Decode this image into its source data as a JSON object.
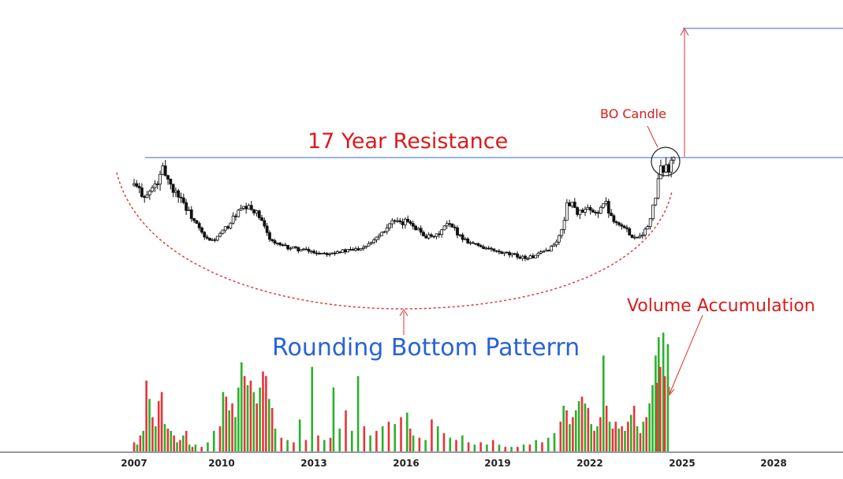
{
  "chart_data": {
    "type": "candlestick",
    "annotations": {
      "resistance": "17 Year Resistance",
      "breakout": "BO Candle",
      "pattern": "Rounding Bottom Patterrn",
      "volume": "Volume Accumulation"
    },
    "x_ticks": [
      "2007",
      "2010",
      "2013",
      "2016",
      "2019",
      "2022",
      "2025",
      "2028"
    ],
    "xlim": [
      2006.6,
      2029.5
    ],
    "price_range_visible": [
      0,
      100
    ],
    "resistance_level": 82,
    "target_level": 163,
    "price_series": [
      [
        2007.0,
        62
      ],
      [
        2007.2,
        58
      ],
      [
        2007.4,
        55
      ],
      [
        2007.6,
        60
      ],
      [
        2007.8,
        64
      ],
      [
        2007.95,
        72
      ],
      [
        2008.1,
        66
      ],
      [
        2008.3,
        58
      ],
      [
        2008.5,
        56
      ],
      [
        2008.7,
        48
      ],
      [
        2008.9,
        42
      ],
      [
        2009.1,
        36
      ],
      [
        2009.3,
        30
      ],
      [
        2009.5,
        28
      ],
      [
        2009.7,
        30
      ],
      [
        2009.9,
        34
      ],
      [
        2010.1,
        38
      ],
      [
        2010.3,
        44
      ],
      [
        2010.5,
        47
      ],
      [
        2010.7,
        48
      ],
      [
        2010.9,
        47
      ],
      [
        2011.1,
        42
      ],
      [
        2011.3,
        34
      ],
      [
        2011.5,
        28
      ],
      [
        2011.8,
        25
      ],
      [
        2012.1,
        24
      ],
      [
        2012.4,
        23
      ],
      [
        2012.7,
        22
      ],
      [
        2013.0,
        21
      ],
      [
        2013.3,
        21
      ],
      [
        2013.6,
        22
      ],
      [
        2013.9,
        22
      ],
      [
        2014.2,
        23
      ],
      [
        2014.5,
        25
      ],
      [
        2014.8,
        29
      ],
      [
        2015.1,
        34
      ],
      [
        2015.4,
        40
      ],
      [
        2015.7,
        38
      ],
      [
        2015.95,
        41
      ],
      [
        2016.2,
        36
      ],
      [
        2016.5,
        31
      ],
      [
        2016.8,
        30
      ],
      [
        2017.0,
        34
      ],
      [
        2017.2,
        38
      ],
      [
        2017.4,
        36
      ],
      [
        2017.7,
        30
      ],
      [
        2018.0,
        27
      ],
      [
        2018.3,
        25
      ],
      [
        2018.6,
        23
      ],
      [
        2018.9,
        21
      ],
      [
        2019.2,
        20
      ],
      [
        2019.5,
        19
      ],
      [
        2019.8,
        18
      ],
      [
        2020.1,
        19
      ],
      [
        2020.3,
        21
      ],
      [
        2020.5,
        23
      ],
      [
        2020.7,
        26
      ],
      [
        2020.9,
        32
      ],
      [
        2021.0,
        40
      ],
      [
        2021.1,
        49
      ],
      [
        2021.25,
        53
      ],
      [
        2021.4,
        46
      ],
      [
        2021.6,
        45
      ],
      [
        2021.8,
        47
      ],
      [
        2022.0,
        44
      ],
      [
        2022.2,
        48
      ],
      [
        2022.35,
        52
      ],
      [
        2022.5,
        45
      ],
      [
        2022.7,
        40
      ],
      [
        2022.9,
        37
      ],
      [
        2023.1,
        34
      ],
      [
        2023.3,
        30
      ],
      [
        2023.5,
        32
      ],
      [
        2023.7,
        35
      ],
      [
        2023.85,
        42
      ],
      [
        2024.0,
        56
      ],
      [
        2024.15,
        70
      ],
      [
        2024.3,
        74
      ],
      [
        2024.45,
        71
      ],
      [
        2024.6,
        80
      ]
    ],
    "volume_series": [
      [
        2007.0,
        8,
        "red"
      ],
      [
        2007.1,
        6,
        "green"
      ],
      [
        2007.2,
        14,
        "red"
      ],
      [
        2007.3,
        18,
        "green"
      ],
      [
        2007.4,
        62,
        "red"
      ],
      [
        2007.5,
        46,
        "green"
      ],
      [
        2007.6,
        30,
        "red"
      ],
      [
        2007.7,
        22,
        "green"
      ],
      [
        2007.8,
        44,
        "red"
      ],
      [
        2007.9,
        52,
        "red"
      ],
      [
        2008.0,
        24,
        "green"
      ],
      [
        2008.1,
        20,
        "red"
      ],
      [
        2008.2,
        18,
        "green"
      ],
      [
        2008.3,
        14,
        "red"
      ],
      [
        2008.4,
        8,
        "green"
      ],
      [
        2008.5,
        10,
        "red"
      ],
      [
        2008.6,
        14,
        "green"
      ],
      [
        2008.7,
        18,
        "red"
      ],
      [
        2008.8,
        6,
        "green"
      ],
      [
        2008.9,
        4,
        "red"
      ],
      [
        2009.0,
        6,
        "green"
      ],
      [
        2009.2,
        4,
        "red"
      ],
      [
        2009.4,
        8,
        "green"
      ],
      [
        2009.6,
        18,
        "green"
      ],
      [
        2009.8,
        22,
        "red"
      ],
      [
        2009.9,
        52,
        "green"
      ],
      [
        2010.0,
        48,
        "red"
      ],
      [
        2010.1,
        36,
        "green"
      ],
      [
        2010.2,
        42,
        "red"
      ],
      [
        2010.3,
        30,
        "green"
      ],
      [
        2010.4,
        56,
        "green"
      ],
      [
        2010.5,
        78,
        "green"
      ],
      [
        2010.6,
        66,
        "red"
      ],
      [
        2010.7,
        58,
        "green"
      ],
      [
        2010.8,
        62,
        "red"
      ],
      [
        2010.9,
        52,
        "green"
      ],
      [
        2011.0,
        42,
        "red"
      ],
      [
        2011.1,
        56,
        "green"
      ],
      [
        2011.2,
        70,
        "red"
      ],
      [
        2011.3,
        66,
        "red"
      ],
      [
        2011.4,
        46,
        "green"
      ],
      [
        2011.5,
        38,
        "red"
      ],
      [
        2011.6,
        20,
        "green"
      ],
      [
        2011.8,
        12,
        "red"
      ],
      [
        2012.0,
        10,
        "green"
      ],
      [
        2012.2,
        8,
        "red"
      ],
      [
        2012.4,
        28,
        "green"
      ],
      [
        2012.6,
        10,
        "red"
      ],
      [
        2012.8,
        74,
        "green"
      ],
      [
        2013.0,
        14,
        "red"
      ],
      [
        2013.2,
        10,
        "green"
      ],
      [
        2013.4,
        12,
        "red"
      ],
      [
        2013.5,
        56,
        "green"
      ],
      [
        2013.7,
        20,
        "green"
      ],
      [
        2013.9,
        36,
        "red"
      ],
      [
        2014.1,
        18,
        "green"
      ],
      [
        2014.3,
        66,
        "green"
      ],
      [
        2014.5,
        22,
        "red"
      ],
      [
        2014.7,
        14,
        "green"
      ],
      [
        2014.9,
        18,
        "red"
      ],
      [
        2015.1,
        22,
        "green"
      ],
      [
        2015.3,
        26,
        "red"
      ],
      [
        2015.5,
        24,
        "green"
      ],
      [
        2015.7,
        30,
        "red"
      ],
      [
        2015.9,
        34,
        "green"
      ],
      [
        2016.0,
        20,
        "red"
      ],
      [
        2016.1,
        14,
        "green"
      ],
      [
        2016.3,
        12,
        "red"
      ],
      [
        2016.5,
        10,
        "green"
      ],
      [
        2016.7,
        28,
        "red"
      ],
      [
        2016.9,
        22,
        "green"
      ],
      [
        2017.1,
        16,
        "red"
      ],
      [
        2017.3,
        12,
        "green"
      ],
      [
        2017.5,
        10,
        "red"
      ],
      [
        2017.7,
        14,
        "green"
      ],
      [
        2017.9,
        8,
        "red"
      ],
      [
        2018.1,
        6,
        "green"
      ],
      [
        2018.3,
        8,
        "red"
      ],
      [
        2018.5,
        6,
        "green"
      ],
      [
        2018.7,
        10,
        "red"
      ],
      [
        2018.9,
        6,
        "green"
      ],
      [
        2019.1,
        4,
        "red"
      ],
      [
        2019.3,
        4,
        "green"
      ],
      [
        2019.5,
        4,
        "red"
      ],
      [
        2019.7,
        6,
        "green"
      ],
      [
        2019.9,
        6,
        "red"
      ],
      [
        2020.1,
        10,
        "green"
      ],
      [
        2020.3,
        8,
        "red"
      ],
      [
        2020.5,
        12,
        "green"
      ],
      [
        2020.7,
        16,
        "green"
      ],
      [
        2020.9,
        26,
        "red"
      ],
      [
        2021.0,
        40,
        "green"
      ],
      [
        2021.1,
        36,
        "red"
      ],
      [
        2021.2,
        24,
        "green"
      ],
      [
        2021.3,
        30,
        "red"
      ],
      [
        2021.4,
        36,
        "green"
      ],
      [
        2021.5,
        44,
        "green"
      ],
      [
        2021.6,
        48,
        "red"
      ],
      [
        2021.7,
        42,
        "green"
      ],
      [
        2021.8,
        38,
        "red"
      ],
      [
        2021.9,
        24,
        "green"
      ],
      [
        2022.0,
        18,
        "red"
      ],
      [
        2022.1,
        22,
        "green"
      ],
      [
        2022.2,
        30,
        "red"
      ],
      [
        2022.3,
        84,
        "green"
      ],
      [
        2022.4,
        40,
        "red"
      ],
      [
        2022.5,
        26,
        "green"
      ],
      [
        2022.6,
        20,
        "red"
      ],
      [
        2022.7,
        26,
        "red"
      ],
      [
        2022.8,
        20,
        "green"
      ],
      [
        2022.9,
        22,
        "red"
      ],
      [
        2023.0,
        18,
        "green"
      ],
      [
        2023.1,
        26,
        "red"
      ],
      [
        2023.2,
        32,
        "green"
      ],
      [
        2023.3,
        40,
        "red"
      ],
      [
        2023.4,
        22,
        "green"
      ],
      [
        2023.5,
        16,
        "red"
      ],
      [
        2023.6,
        26,
        "green"
      ],
      [
        2023.7,
        30,
        "red"
      ],
      [
        2023.8,
        42,
        "green"
      ],
      [
        2023.9,
        58,
        "green"
      ],
      [
        2024.0,
        84,
        "green"
      ],
      [
        2024.05,
        60,
        "red"
      ],
      [
        2024.1,
        100,
        "green"
      ],
      [
        2024.15,
        74,
        "red"
      ],
      [
        2024.25,
        104,
        "green"
      ],
      [
        2024.3,
        66,
        "red"
      ],
      [
        2024.4,
        94,
        "green"
      ]
    ]
  }
}
